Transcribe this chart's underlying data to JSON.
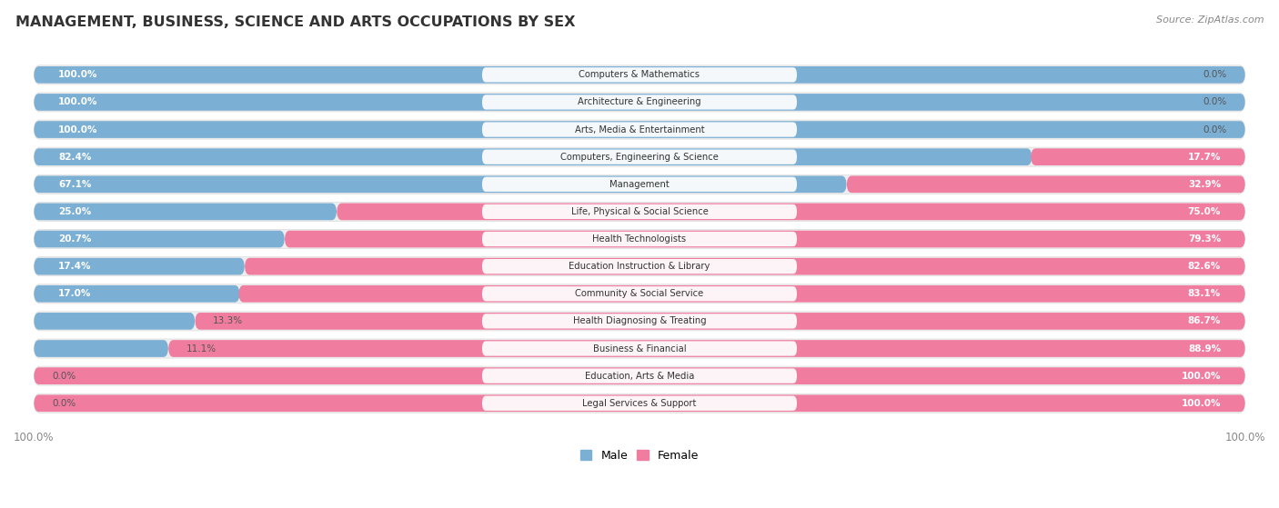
{
  "title": "MANAGEMENT, BUSINESS, SCIENCE AND ARTS OCCUPATIONS BY SEX",
  "source": "Source: ZipAtlas.com",
  "categories": [
    "Computers & Mathematics",
    "Architecture & Engineering",
    "Arts, Media & Entertainment",
    "Computers, Engineering & Science",
    "Management",
    "Life, Physical & Social Science",
    "Health Technologists",
    "Education Instruction & Library",
    "Community & Social Service",
    "Health Diagnosing & Treating",
    "Business & Financial",
    "Education, Arts & Media",
    "Legal Services & Support"
  ],
  "male_pct": [
    100.0,
    100.0,
    100.0,
    82.4,
    67.1,
    25.0,
    20.7,
    17.4,
    17.0,
    13.3,
    11.1,
    0.0,
    0.0
  ],
  "female_pct": [
    0.0,
    0.0,
    0.0,
    17.7,
    32.9,
    75.0,
    79.3,
    82.6,
    83.1,
    86.7,
    88.9,
    100.0,
    100.0
  ],
  "male_color": "#7bafd4",
  "female_color": "#f07ca0",
  "background_color": "#ffffff",
  "row_bg_color": "#eeeeee",
  "bar_height": 0.62,
  "legend_labels": [
    "Male",
    "Female"
  ],
  "legend_colors": [
    "#7bafd4",
    "#f07ca0"
  ],
  "label_threshold_inside": 15
}
